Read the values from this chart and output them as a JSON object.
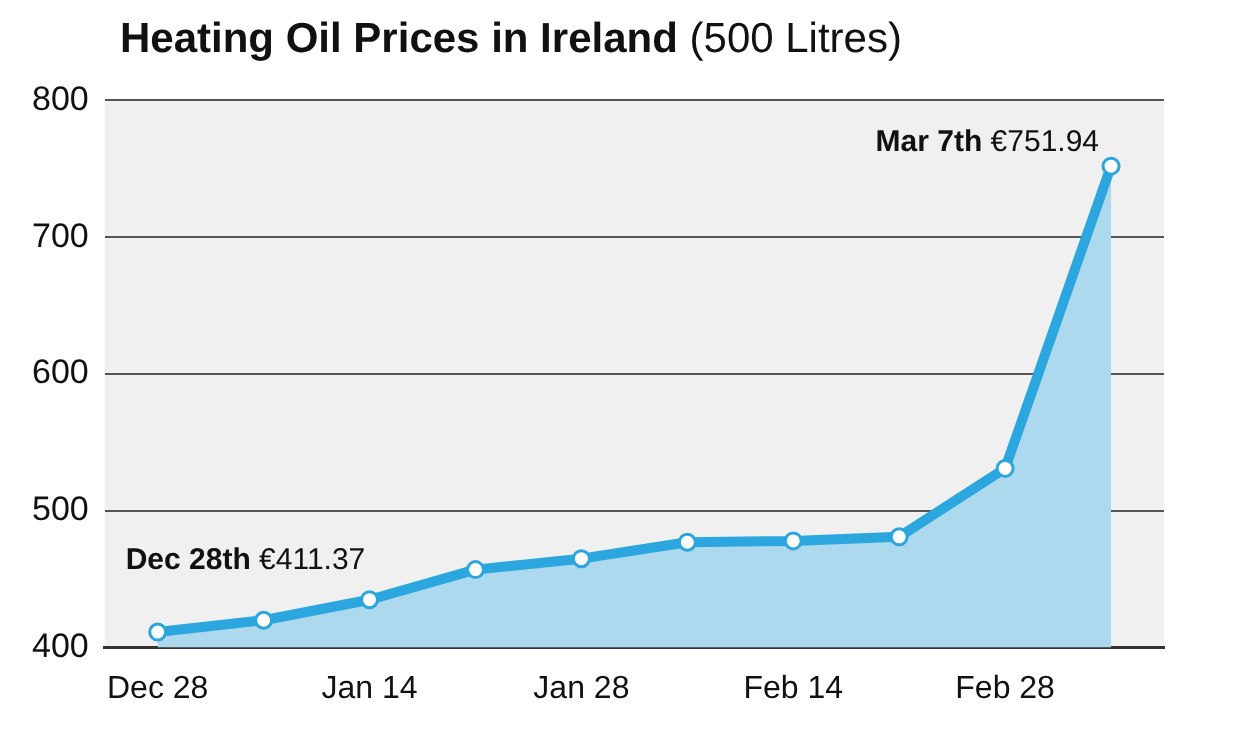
{
  "chart_data": {
    "type": "area",
    "title": "Heating Oil Prices in Ireland",
    "subtitle": "(500 Litres)",
    "categories": [
      "Dec 28",
      null,
      "Jan 14",
      null,
      "Jan 28",
      null,
      "Feb 14",
      null,
      "Feb 28",
      null
    ],
    "series": [
      {
        "color": "#2ba6de",
        "values": [
          411.37,
          420,
          435,
          457,
          465,
          477,
          478,
          481,
          531,
          751.94
        ],
        "value_labels": [
          "Dec 28th €411.37",
          null,
          null,
          null,
          null,
          null,
          null,
          null,
          null,
          "Mar 7th €751.94"
        ]
      }
    ],
    "ylim": [
      400,
      800
    ],
    "yticks": [
      400,
      500,
      600,
      700,
      800
    ],
    "grid": "y",
    "legend": false,
    "marker": "circle",
    "line_style": "solid"
  }
}
